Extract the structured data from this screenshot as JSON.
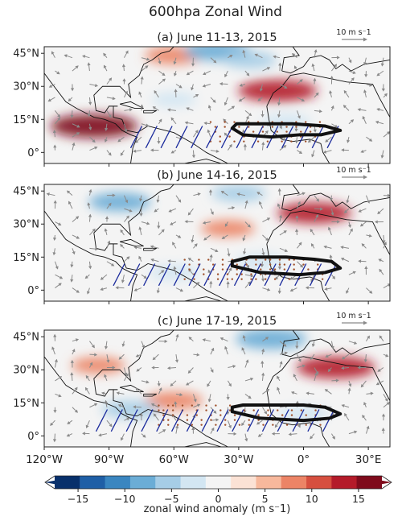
{
  "figure": {
    "title": "600hpa Zonal Wind",
    "colorbar_label": "zonal wind anomaly (m s⁻1)"
  },
  "chart_data": {
    "type": "heatmap",
    "variable": "600 hPa zonal wind anomaly with wind vectors",
    "colorbar": {
      "ticks": [
        -15,
        -10,
        -5,
        0,
        5,
        10,
        15
      ],
      "tick_labels": [
        "−15",
        "−10",
        "−5",
        "0",
        "5",
        "10",
        "15"
      ],
      "range": [
        -17.5,
        17.5
      ],
      "step": 2.5,
      "extend": "both",
      "colors": [
        "#08306b",
        "#1f5fa6",
        "#3a86c0",
        "#6badd6",
        "#a6cde6",
        "#d3e6f2",
        "#f4f4f4",
        "#fbe2d5",
        "#f7b89c",
        "#ec8466",
        "#d64f3f",
        "#b41b2a",
        "#7f0b1c"
      ]
    },
    "axes": {
      "lon_range": [
        -120,
        40
      ],
      "lat_range": [
        -5,
        48
      ],
      "x_ticks": [
        -120,
        -90,
        -60,
        -30,
        0,
        30
      ],
      "x_tick_labels": [
        "120°W",
        "90°W",
        "60°W",
        "30°W",
        "0°",
        "30°E"
      ],
      "y_ticks": [
        45,
        30,
        15,
        0
      ],
      "y_tick_labels": [
        "45°N",
        "30°N",
        "15°N",
        "0°"
      ]
    },
    "reference_vector": {
      "value": 10,
      "label": "10 m s⁻1"
    },
    "panels": [
      {
        "label": "(a) June 11-13, 2015",
        "anomalies": [
          {
            "lon": -60,
            "lat": 44,
            "value": 7
          },
          {
            "lon": -40,
            "lat": 46,
            "value": -9
          },
          {
            "lon": -25,
            "lat": 42,
            "value": -6
          },
          {
            "lon": -12,
            "lat": 28,
            "value": 12
          },
          {
            "lon": -97,
            "lat": 12,
            "value": 14
          },
          {
            "lon": -8,
            "lat": 14,
            "value": -5
          },
          {
            "lon": -60,
            "lat": 24,
            "value": -4
          }
        ],
        "contour": [
          [
            -33,
            11
          ],
          [
            -28,
            8
          ],
          [
            -15,
            7
          ],
          [
            -2,
            8
          ],
          [
            8,
            8
          ],
          [
            17,
            10
          ],
          [
            10,
            12
          ],
          [
            -5,
            13
          ],
          [
            -20,
            13
          ],
          [
            -31,
            13
          ]
        ]
      },
      {
        "label": "(b) June 14-16, 2015",
        "anomalies": [
          {
            "lon": 5,
            "lat": 35,
            "value": 11
          },
          {
            "lon": -30,
            "lat": 44,
            "value": -6
          },
          {
            "lon": -85,
            "lat": 40,
            "value": -8
          },
          {
            "lon": -35,
            "lat": 28,
            "value": 6
          },
          {
            "lon": -20,
            "lat": 13,
            "value": -5
          },
          {
            "lon": -60,
            "lat": 8,
            "value": -5
          }
        ],
        "contour": [
          [
            -33,
            11
          ],
          [
            -20,
            8
          ],
          [
            -2,
            7
          ],
          [
            10,
            8
          ],
          [
            17,
            10
          ],
          [
            13,
            13
          ],
          [
            5,
            14
          ],
          [
            -8,
            15
          ],
          [
            -25,
            15
          ],
          [
            -33,
            13
          ]
        ]
      },
      {
        "label": "(c) June 17-19, 2015",
        "anomalies": [
          {
            "lon": 15,
            "lat": 31,
            "value": 12
          },
          {
            "lon": -15,
            "lat": 44,
            "value": -10
          },
          {
            "lon": -60,
            "lat": 16,
            "value": 7
          },
          {
            "lon": -80,
            "lat": 12,
            "value": -7
          },
          {
            "lon": -95,
            "lat": 32,
            "value": 6
          },
          {
            "lon": 0,
            "lat": 10,
            "value": -5
          }
        ],
        "contour": [
          [
            -33,
            11
          ],
          [
            -20,
            8
          ],
          [
            0,
            7
          ],
          [
            12,
            8
          ],
          [
            17,
            10
          ],
          [
            10,
            13
          ],
          [
            0,
            14
          ],
          [
            -15,
            14
          ],
          [
            -28,
            14
          ],
          [
            -33,
            13
          ]
        ]
      }
    ]
  }
}
